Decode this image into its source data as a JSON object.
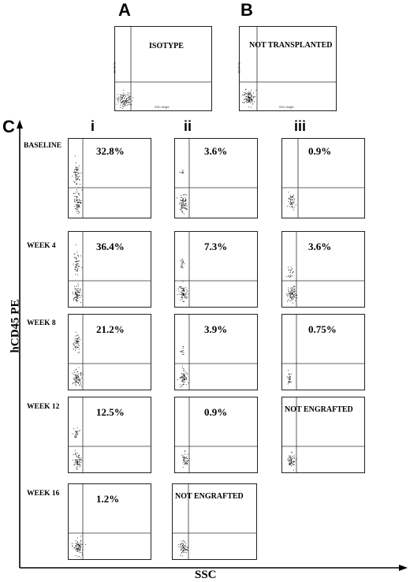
{
  "panels": {
    "A": "A",
    "B": "B",
    "C": "C"
  },
  "columns": [
    "i",
    "ii",
    "iii"
  ],
  "axes": {
    "y_label": "hCD45 PE",
    "x_label": "SSC"
  },
  "plot_axis_text": {
    "y": "CD45 PE",
    "x": "SSC-Height"
  },
  "top_plots": [
    {
      "label": "ISOTYPE"
    },
    {
      "label": "NOT TRANSPLANTED"
    }
  ],
  "rows": [
    {
      "label": "BASELINE",
      "cells": [
        "32.8%",
        "3.6%",
        "0.9%"
      ]
    },
    {
      "label": "WEEK 4",
      "cells": [
        "36.4%",
        "7.3%",
        "3.6%"
      ]
    },
    {
      "label": "WEEK 8",
      "cells": [
        "21.2%",
        "3.9%",
        "0.75%"
      ]
    },
    {
      "label": "WEEK 12",
      "cells": [
        "12.5%",
        "0.9%",
        "NOT ENGRAFTED"
      ]
    },
    {
      "label": "WEEK 16",
      "cells": [
        "1.2%",
        "NOT ENGRAFTED",
        null
      ]
    }
  ]
}
